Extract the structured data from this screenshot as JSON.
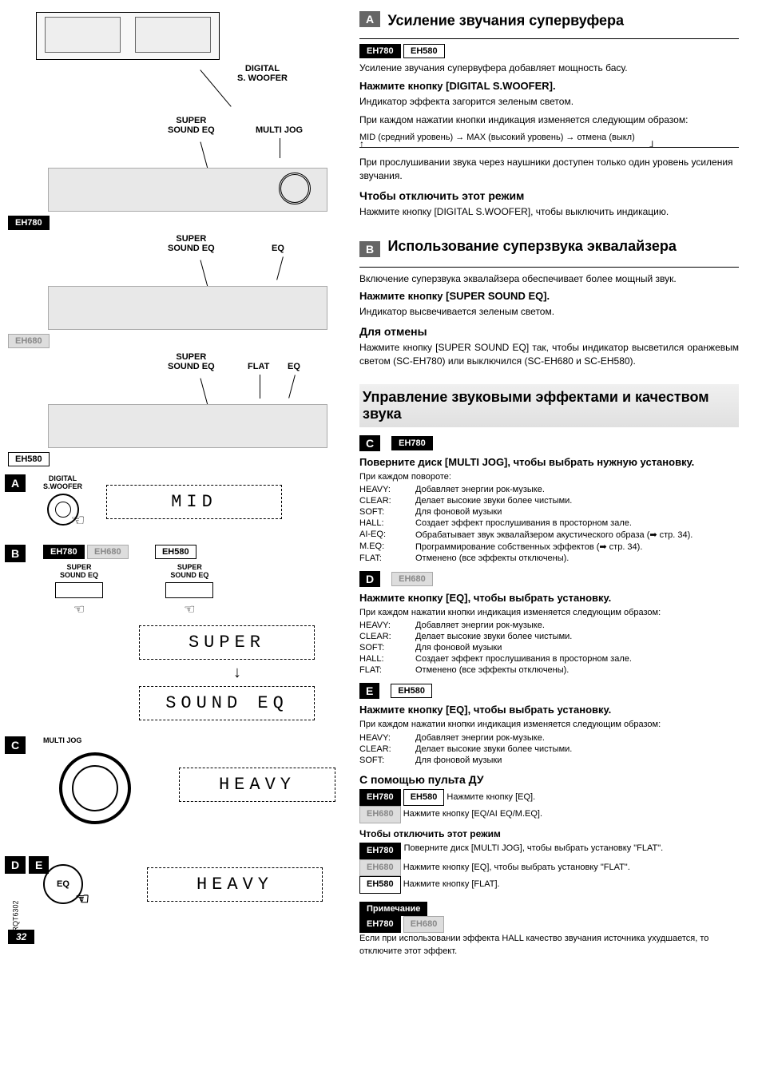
{
  "page_number": "32",
  "doc_code": "RQT6302",
  "left": {
    "device_labels": {
      "digital_swoofer": "DIGITAL\nS. WOOFER",
      "super_sound_eq": "SUPER\nSOUND EQ",
      "multi_jog": "MULTI JOG",
      "eq": "EQ",
      "flat": "FLAT"
    },
    "models": {
      "eh780": "EH780",
      "eh680": "EH680",
      "eh580": "EH580"
    },
    "section_a": {
      "marker": "A",
      "label": "DIGITAL\nS.WOOFER",
      "lcd": "MID"
    },
    "section_b": {
      "marker": "B",
      "button_text": "SUPER\nSOUND EQ",
      "lcd1": "SUPER",
      "lcd2": "SOUND EQ"
    },
    "section_c": {
      "marker": "C",
      "label": "MULTI JOG",
      "lcd": "HEAVY"
    },
    "section_de": {
      "marker_d": "D",
      "marker_e": "E",
      "eq_label": "EQ",
      "lcd": "HEAVY"
    }
  },
  "right": {
    "section_a": {
      "marker": "A",
      "title": "Усиление звучания супервуфера",
      "intro": "Усиление звучания супервуфера добавляет мощность басу.",
      "instruction": "Нажмите кнопку [DIGITAL S.WOOFER].",
      "desc1": "Индикатор эффекта загорится зеленым светом.",
      "desc2": "При каждом нажатии кнопки индикация изменяется следующим образом:",
      "sequence": "MID (средний уровень) → MAX (высокий уровень) → отмена (выкл)",
      "note": "При прослушивании звука через наушники доступен только один уровень усиления звучания.",
      "cancel_title": "Чтобы отключить этот режим",
      "cancel_text": "Нажмите кнопку [DIGITAL S.WOOFER], чтобы выключить индикацию."
    },
    "section_b": {
      "marker": "B",
      "title": "Использование суперзвука эквалайзера",
      "intro": "Включение суперзвука эквалайзера обеспечивает более мощный звук.",
      "instruction": "Нажмите кнопку [SUPER SOUND EQ].",
      "desc": "Индикатор высвечивается зеленым светом.",
      "cancel_title": "Для отмены",
      "cancel_text": "Нажмите кнопку [SUPER SOUND EQ] так, чтобы индикатор высветился оранжевым светом (SC-EH780) или выключился (SC-EH680 и SC-EH580)."
    },
    "effects_section": {
      "title": "Управление звуковыми эффектами и качеством звука"
    },
    "section_c": {
      "marker": "C",
      "instruction": "Поверните диск [MULTI JOG], чтобы выбрать нужную установку.",
      "intro": "При каждом повороте:",
      "rows": [
        {
          "label": "HEAVY:",
          "desc": "Добавляет энергии рок-музыке."
        },
        {
          "label": "CLEAR:",
          "desc": "Делает высокие звуки более чистыми."
        },
        {
          "label": "SOFT:",
          "desc": "Для фоновой музыки"
        },
        {
          "label": "HALL:",
          "desc": "Создает эффект прослушивания в просторном зале."
        },
        {
          "label": "AI-EQ:",
          "desc": "Обрабатывает звук эквалайзером акустического образа (➡ стр. 34)."
        },
        {
          "label": "M.EQ:",
          "desc": "Программирование собственных эффектов (➡ стр. 34)."
        },
        {
          "label": "FLAT:",
          "desc": "Отменено (все эффекты отключены)."
        }
      ]
    },
    "section_d": {
      "marker": "D",
      "instruction": "Нажмите кнопку [EQ], чтобы выбрать установку.",
      "intro": "При каждом нажатии кнопки индикация изменяется следующим образом:",
      "rows": [
        {
          "label": "HEAVY:",
          "desc": "Добавляет энергии рок-музыке."
        },
        {
          "label": "CLEAR:",
          "desc": "Делает высокие звуки более чистыми."
        },
        {
          "label": "SOFT:",
          "desc": "Для фоновой музыки"
        },
        {
          "label": "HALL:",
          "desc": "Создает эффект прослушивания в просторном зале."
        },
        {
          "label": "FLAT:",
          "desc": "Отменено (все эффекты отключены)."
        }
      ]
    },
    "section_e": {
      "marker": "E",
      "instruction": "Нажмите кнопку [EQ], чтобы выбрать установку.",
      "intro": "При каждом нажатии кнопки индикация изменяется следующим образом:",
      "rows": [
        {
          "label": "HEAVY:",
          "desc": "Добавляет энергии рок-музыке."
        },
        {
          "label": "CLEAR:",
          "desc": "Делает высокие звуки более чистыми."
        },
        {
          "label": "SOFT:",
          "desc": "Для фоновой музыки"
        }
      ]
    },
    "remote": {
      "title": "С помощью пульта ДУ",
      "line1": "Нажмите кнопку [EQ].",
      "line2": "Нажмите кнопку [EQ/AI EQ/M.EQ].",
      "cancel_title": "Чтобы отключить этот режим",
      "line3": "Поверните диск [MULTI JOG], чтобы выбрать установку \"FLAT\".",
      "line4": "Нажмите кнопку [EQ], чтобы выбрать установку \"FLAT\".",
      "line5": "Нажмите кнопку [FLAT]."
    },
    "note": {
      "label": "Примечание",
      "text": "Если при использовании эффекта HALL качество звучания источника ухудшается, то отключите этот эффект."
    }
  }
}
